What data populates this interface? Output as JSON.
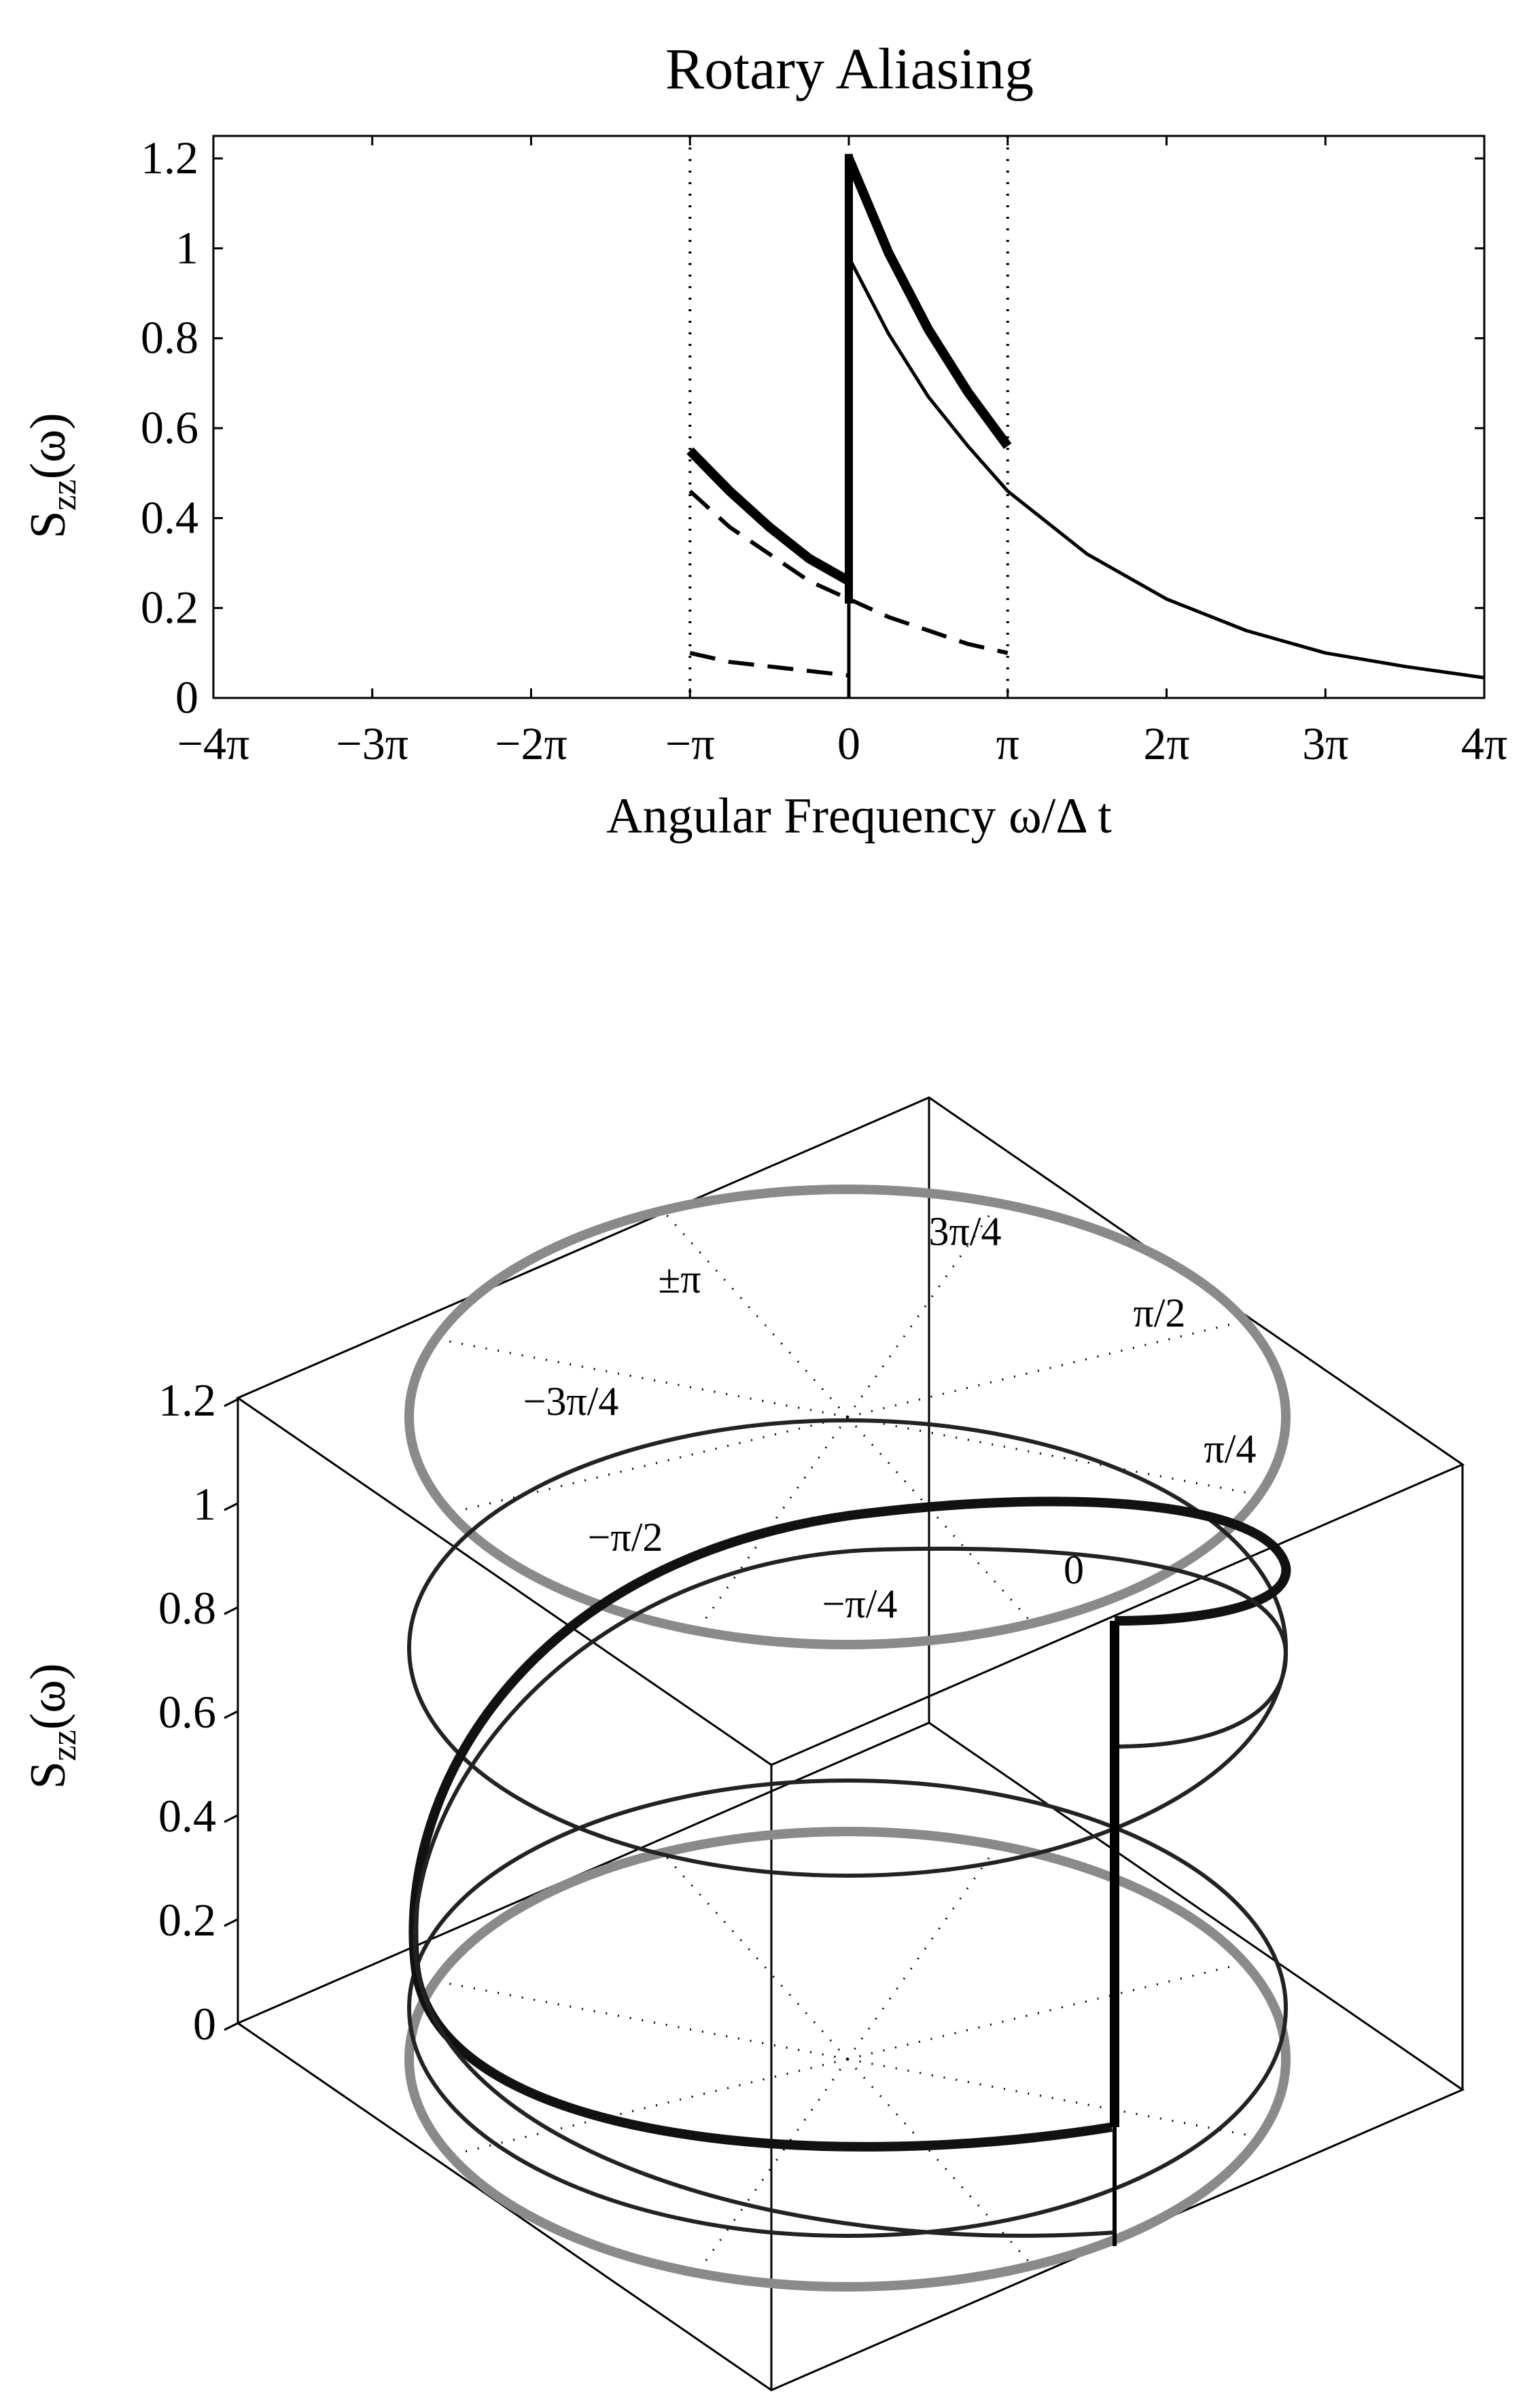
{
  "chart_data": [
    {
      "type": "line",
      "title": "Rotary Aliasing",
      "xlabel": "Angular Frequency ω/Δ t",
      "ylabel": {
        "main": "S",
        "subscript": "zz",
        "suffix": "(ω)"
      },
      "xlim_pi": [
        -4,
        4
      ],
      "ylim": [
        0,
        1.25
      ],
      "xticks": [
        {
          "v": -4,
          "label": "−4π"
        },
        {
          "v": -3,
          "label": "−3π"
        },
        {
          "v": -2,
          "label": "−2π"
        },
        {
          "v": -1,
          "label": "−π"
        },
        {
          "v": 0,
          "label": "0"
        },
        {
          "v": 1,
          "label": "π"
        },
        {
          "v": 2,
          "label": "2π"
        },
        {
          "v": 3,
          "label": "3π"
        },
        {
          "v": 4,
          "label": "4π"
        }
      ],
      "yticks": [
        {
          "v": 0,
          "label": "0"
        },
        {
          "v": 0.2,
          "label": "0.2"
        },
        {
          "v": 0.4,
          "label": "0.4"
        },
        {
          "v": 0.6,
          "label": "0.6"
        },
        {
          "v": 0.8,
          "label": "0.8"
        },
        {
          "v": 1,
          "label": "1"
        },
        {
          "v": 1.2,
          "label": "1.2"
        }
      ],
      "vlines_dotted_pi": [
        -1,
        1
      ],
      "series": [
        {
          "style": "thin-solid",
          "x_pi": [
            0,
            0.25,
            0.5,
            0.75,
            1,
            1.5,
            2,
            2.5,
            3,
            3.5,
            4
          ],
          "y": [
            0.98,
            0.81,
            0.67,
            0.56,
            0.46,
            0.32,
            0.22,
            0.15,
            0.1,
            0.07,
            0.045
          ]
        },
        {
          "style": "dashed",
          "x_pi": [
            -1,
            -0.75,
            -0.5,
            -0.25,
            0
          ],
          "y": [
            0.46,
            0.38,
            0.32,
            0.26,
            0.22
          ]
        },
        {
          "style": "dashed",
          "x_pi": [
            0,
            0.25,
            0.5,
            0.75,
            1
          ],
          "y": [
            0.22,
            0.18,
            0.15,
            0.12,
            0.1
          ]
        },
        {
          "style": "dashed",
          "x_pi": [
            -1,
            -0.75,
            -0.5,
            -0.25,
            0
          ],
          "y": [
            0.1,
            0.08,
            0.07,
            0.06,
            0.05
          ]
        },
        {
          "style": "thick-solid",
          "x_pi": [
            -1,
            -0.75,
            -0.5,
            -0.25,
            0
          ],
          "y": [
            0.55,
            0.46,
            0.38,
            0.31,
            0.26
          ]
        },
        {
          "style": "thick-solid",
          "x_pi": [
            0,
            0.25,
            0.5,
            0.75,
            1
          ],
          "y": [
            1.2,
            0.99,
            0.82,
            0.68,
            0.56
          ]
        },
        {
          "style": "thick-vertical",
          "x_pi": [
            0,
            0
          ],
          "y": [
            0.21,
            1.21
          ]
        },
        {
          "style": "thin-vertical",
          "x_pi": [
            0,
            0
          ],
          "y": [
            0,
            0.21
          ]
        }
      ]
    },
    {
      "type": "line",
      "zlabel": {
        "main": "S",
        "subscript": "zz",
        "suffix": "(ω)"
      },
      "zticks": [
        {
          "v": 0,
          "label": "0"
        },
        {
          "v": 0.2,
          "label": "0.2"
        },
        {
          "v": 0.4,
          "label": "0.4"
        },
        {
          "v": 0.6,
          "label": "0.6"
        },
        {
          "v": 0.8,
          "label": "0.8"
        },
        {
          "v": 1,
          "label": "1"
        },
        {
          "v": 1.2,
          "label": "1.2"
        }
      ],
      "direction_labels": [
        {
          "label": "0"
        },
        {
          "label": "π/4"
        },
        {
          "label": "π/2"
        },
        {
          "label": "3π/4"
        },
        {
          "label": "±π"
        },
        {
          "label": "−3π/4"
        },
        {
          "label": "−π/2"
        },
        {
          "label": "−π/4"
        }
      ]
    }
  ],
  "colors": {
    "ink": "#000000",
    "dark_helix": "#222222",
    "grey_ring": "#8a8a8a"
  }
}
